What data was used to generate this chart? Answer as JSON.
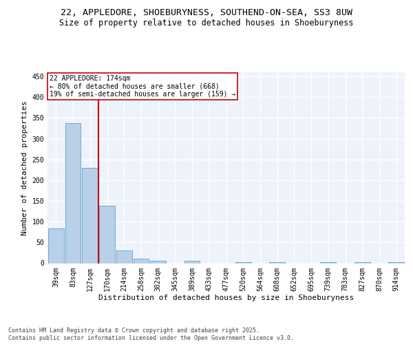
{
  "title_line1": "22, APPLEDORE, SHOEBURYNESS, SOUTHEND-ON-SEA, SS3 8UW",
  "title_line2": "Size of property relative to detached houses in Shoeburyness",
  "xlabel": "Distribution of detached houses by size in Shoeburyness",
  "ylabel": "Number of detached properties",
  "categories": [
    "39sqm",
    "83sqm",
    "127sqm",
    "170sqm",
    "214sqm",
    "258sqm",
    "302sqm",
    "345sqm",
    "389sqm",
    "433sqm",
    "477sqm",
    "520sqm",
    "564sqm",
    "608sqm",
    "652sqm",
    "695sqm",
    "739sqm",
    "783sqm",
    "827sqm",
    "870sqm",
    "914sqm"
  ],
  "values": [
    84,
    337,
    229,
    139,
    30,
    10,
    5,
    0,
    5,
    0,
    0,
    3,
    0,
    3,
    0,
    0,
    3,
    0,
    3,
    0,
    3
  ],
  "bar_color": "#b8d0e8",
  "bar_edge_color": "#6aaad4",
  "vline_x_pos": 2.5,
  "vline_color": "#cc0000",
  "annotation_text": "22 APPLEDORE: 174sqm\n← 80% of detached houses are smaller (668)\n19% of semi-detached houses are larger (159) →",
  "annotation_box_color": "#cc0000",
  "ylim": [
    0,
    460
  ],
  "yticks": [
    0,
    50,
    100,
    150,
    200,
    250,
    300,
    350,
    400,
    450
  ],
  "background_color": "#eef2fb",
  "grid_color": "#ffffff",
  "footer_line1": "Contains HM Land Registry data © Crown copyright and database right 2025.",
  "footer_line2": "Contains public sector information licensed under the Open Government Licence v3.0.",
  "title_fontsize": 9.5,
  "subtitle_fontsize": 8.5,
  "axis_label_fontsize": 8,
  "tick_fontsize": 7,
  "annotation_fontsize": 7,
  "footer_fontsize": 6
}
